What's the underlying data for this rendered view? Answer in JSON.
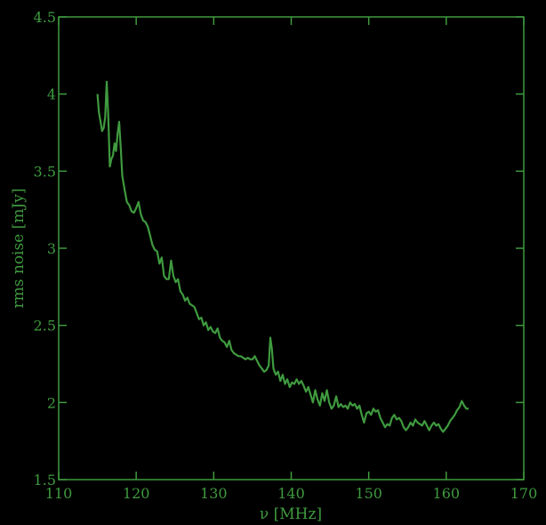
{
  "chart_data": {
    "type": "line",
    "title": "",
    "xlabel": "ν [MHz]",
    "ylabel": "rms noise [mJy]",
    "xlim": [
      110,
      170
    ],
    "ylim": [
      1.5,
      4.5
    ],
    "xticks": [
      110,
      120,
      130,
      140,
      150,
      160,
      170
    ],
    "xtick_labels": [
      "110",
      "120",
      "130",
      "140",
      "150",
      "160",
      "170"
    ],
    "yticks": [
      1.5,
      2,
      2.5,
      3,
      3.5,
      4,
      4.5
    ],
    "ytick_labels": [
      "1.5",
      "2",
      "2.5",
      "3",
      "3.5",
      "4",
      "4.5"
    ],
    "grid": false,
    "line_color": "#3f9a3f",
    "series": [
      {
        "points": [
          [
            115.0,
            4.0
          ],
          [
            115.2,
            3.88
          ],
          [
            115.4,
            3.82
          ],
          [
            115.6,
            3.76
          ],
          [
            115.8,
            3.78
          ],
          [
            116.0,
            3.85
          ],
          [
            116.2,
            4.08
          ],
          [
            116.4,
            3.85
          ],
          [
            116.6,
            3.53
          ],
          [
            116.8,
            3.58
          ],
          [
            117.0,
            3.6
          ],
          [
            117.2,
            3.68
          ],
          [
            117.4,
            3.63
          ],
          [
            117.6,
            3.74
          ],
          [
            117.8,
            3.82
          ],
          [
            118.0,
            3.66
          ],
          [
            118.2,
            3.47
          ],
          [
            118.5,
            3.38
          ],
          [
            118.8,
            3.3
          ],
          [
            119.1,
            3.28
          ],
          [
            119.4,
            3.24
          ],
          [
            119.7,
            3.23
          ],
          [
            120.0,
            3.26
          ],
          [
            120.3,
            3.3
          ],
          [
            120.6,
            3.22
          ],
          [
            120.9,
            3.18
          ],
          [
            121.2,
            3.17
          ],
          [
            121.5,
            3.14
          ],
          [
            121.8,
            3.08
          ],
          [
            122.1,
            3.02
          ],
          [
            122.4,
            2.99
          ],
          [
            122.7,
            2.98
          ],
          [
            123.0,
            2.9
          ],
          [
            123.3,
            2.94
          ],
          [
            123.6,
            2.82
          ],
          [
            123.9,
            2.8
          ],
          [
            124.2,
            2.8
          ],
          [
            124.5,
            2.92
          ],
          [
            124.8,
            2.82
          ],
          [
            125.1,
            2.78
          ],
          [
            125.4,
            2.8
          ],
          [
            125.7,
            2.72
          ],
          [
            126.0,
            2.7
          ],
          [
            126.3,
            2.66
          ],
          [
            126.6,
            2.68
          ],
          [
            126.9,
            2.64
          ],
          [
            127.2,
            2.63
          ],
          [
            127.5,
            2.62
          ],
          [
            127.8,
            2.58
          ],
          [
            128.1,
            2.54
          ],
          [
            128.4,
            2.55
          ],
          [
            128.7,
            2.5
          ],
          [
            129.0,
            2.52
          ],
          [
            129.3,
            2.47
          ],
          [
            129.6,
            2.49
          ],
          [
            129.9,
            2.46
          ],
          [
            130.2,
            2.45
          ],
          [
            130.5,
            2.48
          ],
          [
            130.8,
            2.42
          ],
          [
            131.1,
            2.4
          ],
          [
            131.4,
            2.39
          ],
          [
            131.7,
            2.36
          ],
          [
            132.0,
            2.4
          ],
          [
            132.3,
            2.34
          ],
          [
            132.6,
            2.32
          ],
          [
            132.9,
            2.31
          ],
          [
            133.2,
            2.3
          ],
          [
            133.5,
            2.3
          ],
          [
            133.8,
            2.29
          ],
          [
            134.1,
            2.28
          ],
          [
            134.4,
            2.29
          ],
          [
            134.7,
            2.28
          ],
          [
            135.0,
            2.28
          ],
          [
            135.3,
            2.3
          ],
          [
            135.6,
            2.27
          ],
          [
            135.9,
            2.24
          ],
          [
            136.2,
            2.22
          ],
          [
            136.5,
            2.2
          ],
          [
            136.8,
            2.21
          ],
          [
            137.1,
            2.24
          ],
          [
            137.3,
            2.42
          ],
          [
            137.5,
            2.35
          ],
          [
            137.7,
            2.22
          ],
          [
            138.0,
            2.18
          ],
          [
            138.3,
            2.2
          ],
          [
            138.6,
            2.14
          ],
          [
            138.9,
            2.18
          ],
          [
            139.2,
            2.12
          ],
          [
            139.5,
            2.15
          ],
          [
            139.8,
            2.1
          ],
          [
            140.1,
            2.13
          ],
          [
            140.4,
            2.12
          ],
          [
            140.7,
            2.15
          ],
          [
            141.0,
            2.12
          ],
          [
            141.3,
            2.14
          ],
          [
            141.6,
            2.11
          ],
          [
            141.9,
            2.07
          ],
          [
            142.2,
            2.1
          ],
          [
            142.5,
            2.05
          ],
          [
            142.8,
            2.0
          ],
          [
            143.1,
            2.08
          ],
          [
            143.4,
            2.02
          ],
          [
            143.7,
            1.98
          ],
          [
            144.0,
            2.06
          ],
          [
            144.3,
            2.01
          ],
          [
            144.6,
            2.08
          ],
          [
            144.9,
            2.0
          ],
          [
            145.2,
            1.96
          ],
          [
            145.5,
            1.98
          ],
          [
            145.8,
            2.04
          ],
          [
            146.1,
            1.97
          ],
          [
            146.4,
            1.99
          ],
          [
            146.7,
            1.97
          ],
          [
            147.0,
            1.98
          ],
          [
            147.3,
            1.96
          ],
          [
            147.6,
            2.0
          ],
          [
            147.9,
            1.98
          ],
          [
            148.2,
            1.99
          ],
          [
            148.5,
            1.96
          ],
          [
            148.8,
            1.98
          ],
          [
            149.1,
            1.92
          ],
          [
            149.4,
            1.87
          ],
          [
            149.7,
            1.93
          ],
          [
            150.0,
            1.94
          ],
          [
            150.3,
            1.92
          ],
          [
            150.6,
            1.96
          ],
          [
            150.9,
            1.94
          ],
          [
            151.2,
            1.95
          ],
          [
            151.5,
            1.9
          ],
          [
            151.8,
            1.87
          ],
          [
            152.1,
            1.84
          ],
          [
            152.4,
            1.86
          ],
          [
            152.7,
            1.85
          ],
          [
            153.0,
            1.9
          ],
          [
            153.3,
            1.92
          ],
          [
            153.6,
            1.89
          ],
          [
            153.9,
            1.9
          ],
          [
            154.2,
            1.88
          ],
          [
            154.5,
            1.84
          ],
          [
            154.8,
            1.82
          ],
          [
            155.1,
            1.84
          ],
          [
            155.4,
            1.87
          ],
          [
            155.7,
            1.85
          ],
          [
            156.0,
            1.89
          ],
          [
            156.3,
            1.87
          ],
          [
            156.6,
            1.86
          ],
          [
            156.9,
            1.85
          ],
          [
            157.2,
            1.88
          ],
          [
            157.5,
            1.85
          ],
          [
            157.8,
            1.82
          ],
          [
            158.1,
            1.85
          ],
          [
            158.4,
            1.87
          ],
          [
            158.7,
            1.85
          ],
          [
            159.0,
            1.86
          ],
          [
            159.3,
            1.83
          ],
          [
            159.6,
            1.81
          ],
          [
            159.9,
            1.83
          ],
          [
            160.2,
            1.85
          ],
          [
            160.5,
            1.88
          ],
          [
            160.8,
            1.9
          ],
          [
            161.1,
            1.92
          ],
          [
            161.4,
            1.95
          ],
          [
            161.7,
            1.97
          ],
          [
            162.0,
            2.01
          ],
          [
            162.3,
            1.98
          ],
          [
            162.6,
            1.96
          ],
          [
            162.9,
            1.96
          ]
        ]
      }
    ]
  }
}
